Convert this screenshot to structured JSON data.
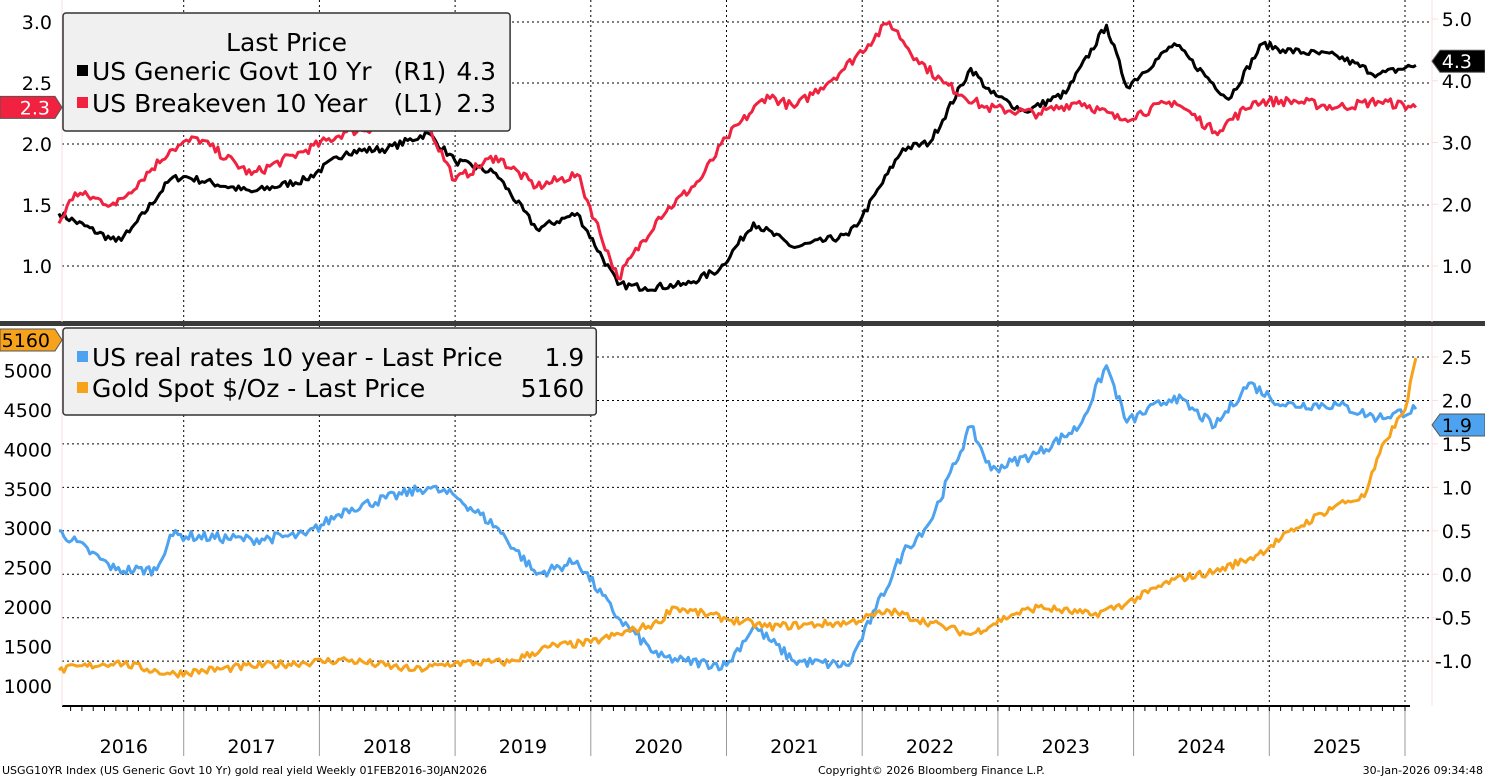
{
  "footer": {
    "left": "USGG10YR Index (US Generic Govt 10 Yr) gold real yield Weekly 01FEB2016-30JAN2026",
    "center": "Copyright© 2026 Bloomberg Finance L.P.",
    "right": "30-Jan-2026 09:34:48"
  },
  "colors": {
    "govt10": "#000000",
    "breakeven": "#f0223f",
    "real": "#4da3f0",
    "gold": "#f7a21b"
  },
  "chart_data": [
    {
      "type": "line",
      "panel": "top",
      "legend": {
        "title": "Last Price",
        "placement": "top-left",
        "entries": [
          {
            "name": "US Generic Govt 10 Yr",
            "axis": "(R1)",
            "last": "4.3"
          },
          {
            "name": "US Breakeven 10 Year",
            "axis": "(L1)",
            "last": "2.3"
          }
        ]
      },
      "left_axis": {
        "ticks": [
          "3.0",
          "2.5",
          "2.0",
          "1.5",
          "1.0"
        ],
        "ylim": [
          0.6,
          3.1
        ]
      },
      "right_axis": {
        "ticks": [
          "5.0",
          "4.0",
          "3.0",
          "2.0",
          "1.0"
        ],
        "ylim": [
          0.0,
          5.3
        ]
      },
      "last_tags": {
        "left": "2.3",
        "right": "4.3"
      },
      "series": [
        {
          "name": "US Generic Govt 10 Yr",
          "axis": "right",
          "x": [
            2016.08,
            2016.5,
            2016.6,
            2016.9,
            2017.0,
            2017.5,
            2017.9,
            2018.2,
            2018.5,
            2018.8,
            2019.0,
            2019.3,
            2019.6,
            2019.9,
            2020.2,
            2020.4,
            2020.7,
            2020.95,
            2021.2,
            2021.5,
            2021.9,
            2022.0,
            2022.3,
            2022.5,
            2022.8,
            2022.95,
            2023.2,
            2023.5,
            2023.8,
            2023.95,
            2024.3,
            2024.7,
            2024.95,
            2025.1,
            2025.5,
            2025.8,
            2026.08
          ],
          "y": [
            1.85,
            1.4,
            1.55,
            2.4,
            2.45,
            2.2,
            2.4,
            2.85,
            2.9,
            3.15,
            2.7,
            2.5,
            1.6,
            1.85,
            0.7,
            0.65,
            0.7,
            0.95,
            1.7,
            1.3,
            1.5,
            1.8,
            2.9,
            3.0,
            4.2,
            3.8,
            3.5,
            3.8,
            4.9,
            3.9,
            4.6,
            3.7,
            4.6,
            4.5,
            4.4,
            4.1,
            4.25
          ]
        },
        {
          "name": "US Breakeven 10 Year",
          "axis": "left",
          "x": [
            2016.08,
            2016.2,
            2016.5,
            2016.9,
            2017.1,
            2017.5,
            2017.9,
            2018.2,
            2018.5,
            2018.8,
            2019.0,
            2019.3,
            2019.6,
            2019.9,
            2020.2,
            2020.5,
            2020.8,
            2021.0,
            2021.3,
            2021.5,
            2021.85,
            2022.2,
            2022.4,
            2022.6,
            2022.9,
            2023.3,
            2023.6,
            2023.9,
            2024.3,
            2024.6,
            2024.9,
            2025.2,
            2025.5,
            2025.8,
            2026.08
          ],
          "y": [
            1.35,
            1.6,
            1.5,
            1.95,
            2.05,
            1.75,
            1.95,
            2.1,
            2.15,
            2.15,
            1.7,
            1.9,
            1.65,
            1.75,
            0.9,
            1.4,
            1.7,
            2.05,
            2.4,
            2.3,
            2.6,
            3.0,
            2.7,
            2.5,
            2.3,
            2.25,
            2.35,
            2.2,
            2.35,
            2.1,
            2.35,
            2.35,
            2.3,
            2.35,
            2.3
          ]
        }
      ]
    },
    {
      "type": "line",
      "panel": "bottom",
      "legend": {
        "placement": "top-left",
        "entries": [
          {
            "name": "US real rates 10 year - Last Price",
            "last": "1.9"
          },
          {
            "name": "Gold Spot $/Oz - Last Price",
            "last": "5160"
          }
        ]
      },
      "left_axis": {
        "ticks": [
          "5000",
          "4500",
          "4000",
          "3500",
          "3000",
          "2500",
          "2000",
          "1500",
          "1000"
        ],
        "ylim": [
          800,
          5300
        ]
      },
      "right_axis": {
        "ticks": [
          "2.5",
          "2.0",
          "1.5",
          "1.0",
          "0.5",
          "0.0",
          "-0.5",
          "-1.0"
        ],
        "ylim": [
          -1.5,
          2.65
        ]
      },
      "last_tags": {
        "left": "5160",
        "right": "1.9"
      },
      "series": [
        {
          "name": "US real rates 10 year",
          "axis": "right",
          "x": [
            2016.08,
            2016.5,
            2016.8,
            2016.9,
            2017.5,
            2017.9,
            2018.2,
            2018.8,
            2019.0,
            2019.3,
            2019.6,
            2019.9,
            2020.2,
            2020.5,
            2020.7,
            2021.0,
            2021.2,
            2021.5,
            2021.9,
            2022.1,
            2022.3,
            2022.5,
            2022.8,
            2022.95,
            2023.3,
            2023.6,
            2023.8,
            2023.95,
            2024.3,
            2024.6,
            2024.85,
            2025.1,
            2025.5,
            2025.8,
            2026.08
          ],
          "y": [
            0.5,
            0.05,
            0.05,
            0.45,
            0.4,
            0.45,
            0.75,
            1.0,
            0.9,
            0.55,
            0.0,
            0.15,
            -0.5,
            -0.95,
            -1.0,
            -1.05,
            -0.6,
            -1.0,
            -1.05,
            -0.4,
            0.25,
            0.6,
            1.7,
            1.2,
            1.4,
            1.7,
            2.4,
            1.75,
            2.05,
            1.7,
            2.2,
            1.95,
            1.95,
            1.8,
            1.9
          ]
        },
        {
          "name": "Gold Spot $/Oz",
          "axis": "left",
          "x": [
            2016.08,
            2016.5,
            2016.9,
            2017.5,
            2018.2,
            2018.7,
            2019.0,
            2019.4,
            2019.7,
            2020.0,
            2020.5,
            2020.6,
            2021.0,
            2021.3,
            2021.9,
            2022.2,
            2022.6,
            2022.8,
            2023.1,
            2023.3,
            2023.7,
            2023.95,
            2024.3,
            2024.6,
            2024.9,
            2025.2,
            2025.5,
            2025.7,
            2025.85,
            2026.0,
            2026.08
          ],
          "y": [
            1200,
            1300,
            1150,
            1250,
            1330,
            1200,
            1290,
            1300,
            1500,
            1550,
            1800,
            2000,
            1850,
            1750,
            1800,
            1950,
            1750,
            1650,
            1900,
            2000,
            1900,
            2050,
            2350,
            2450,
            2650,
            3000,
            3300,
            3400,
            4100,
            4500,
            5160
          ]
        }
      ]
    }
  ],
  "x_axis": {
    "labels": [
      "2016",
      "2017",
      "2018",
      "2019",
      "2020",
      "2021",
      "2022",
      "2023",
      "2024",
      "2025"
    ],
    "range": [
      "01FEB2016",
      "30JAN2026"
    ]
  }
}
